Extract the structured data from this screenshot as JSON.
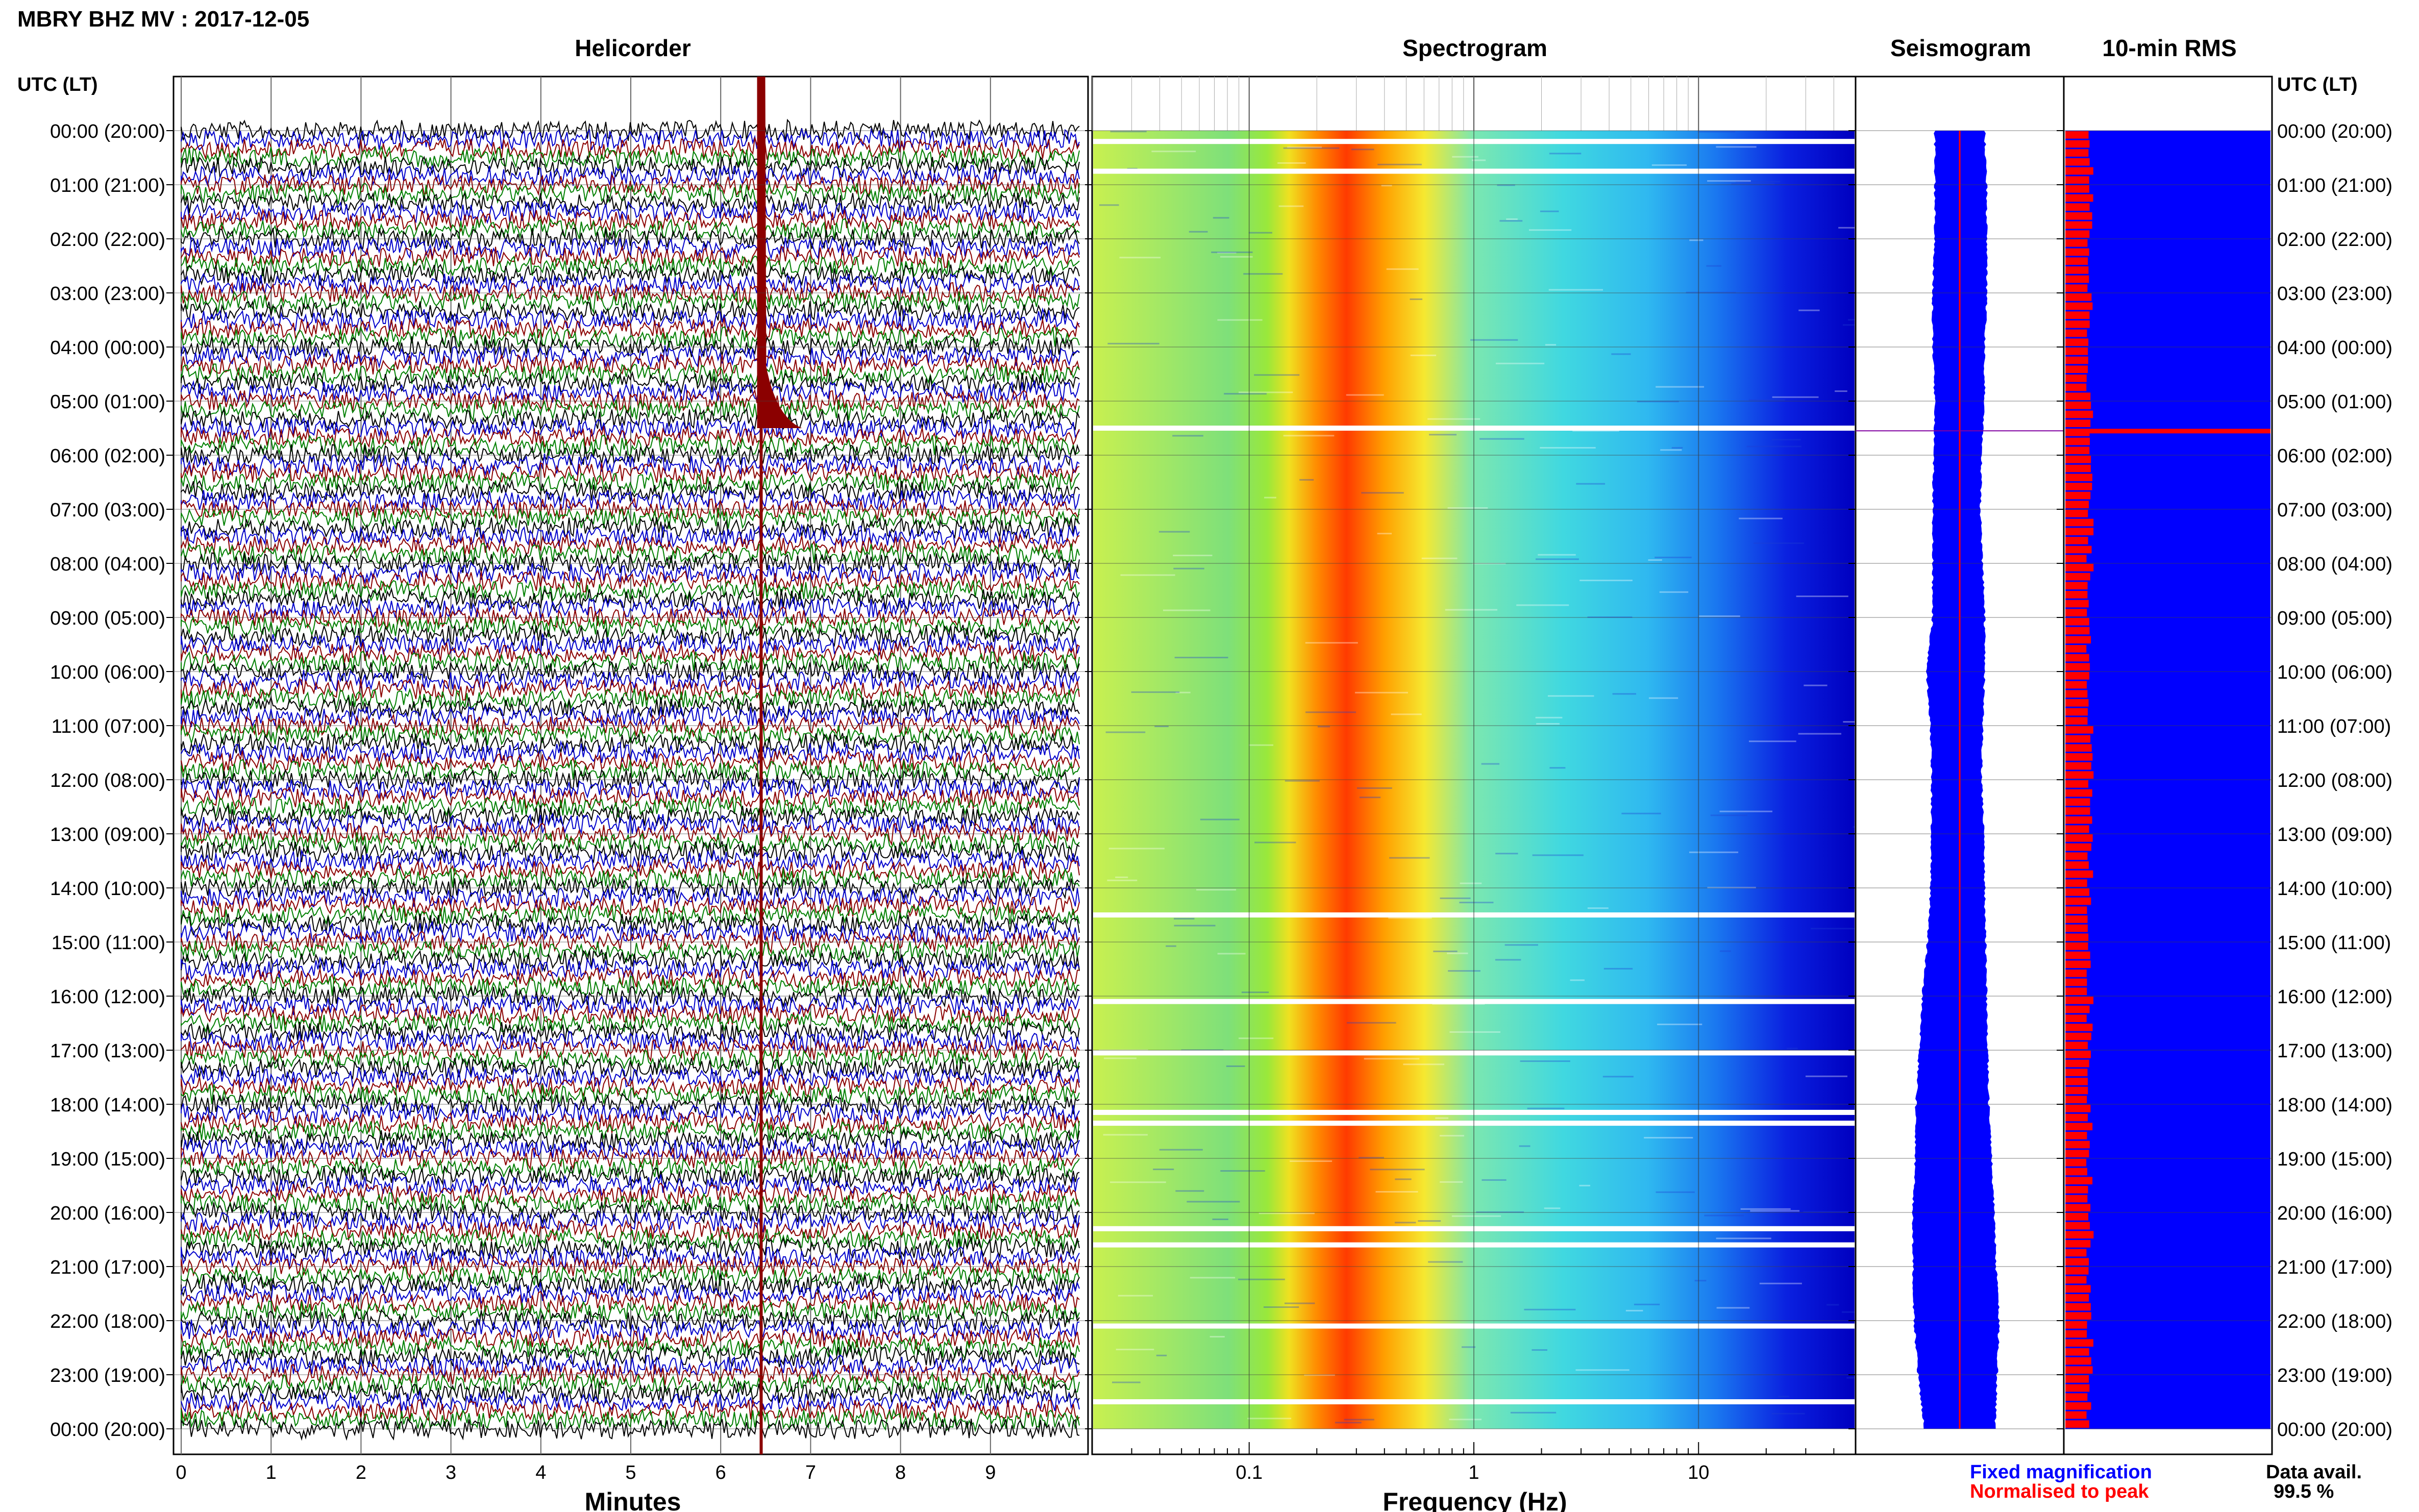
{
  "title": "MBRY BHZ MV : 2017-12-05",
  "panels": {
    "helicorder": "Helicorder",
    "spectrogram": "Spectrogram",
    "seismogram": "Seismogram",
    "rms": "10-min RMS"
  },
  "time_axis": {
    "header": "UTC (LT)",
    "labels": [
      "00:00 (20:00)",
      "01:00 (21:00)",
      "02:00 (22:00)",
      "03:00 (23:00)",
      "04:00 (00:00)",
      "05:00 (01:00)",
      "06:00 (02:00)",
      "07:00 (03:00)",
      "08:00 (04:00)",
      "09:00 (05:00)",
      "10:00 (06:00)",
      "11:00 (07:00)",
      "12:00 (08:00)",
      "13:00 (09:00)",
      "14:00 (10:00)",
      "15:00 (11:00)",
      "16:00 (12:00)",
      "17:00 (13:00)",
      "18:00 (14:00)",
      "19:00 (15:00)",
      "20:00 (16:00)",
      "21:00 (17:00)",
      "22:00 (18:00)",
      "23:00 (19:00)",
      "00:00 (20:00)"
    ]
  },
  "legend": {
    "fixed": "Fixed magnification",
    "normalised": "Normalised to peak",
    "fixed_color": "#0000ff",
    "normalised_color": "#ff0000"
  },
  "data_avail": {
    "label": "Data avail.",
    "value": "99.5 %"
  },
  "chart_data": [
    {
      "type": "line",
      "panel": "helicorder",
      "xlabel": "Minutes",
      "x_ticks": [
        "0",
        "1",
        "2",
        "3",
        "4",
        "5",
        "6",
        "7",
        "8",
        "9"
      ],
      "xlim": [
        0,
        10
      ],
      "trace_colors": [
        "#000000",
        "#0000cc",
        "#8b0000",
        "#008000"
      ],
      "traces_per_hour": 6,
      "event": {
        "minute": 6.45,
        "start_hour": 0.0,
        "end_hour": 24.0,
        "peak_hour": 5.5,
        "color": "#8b0000"
      }
    },
    {
      "type": "heatmap",
      "panel": "spectrogram",
      "xlabel": "Frequency (Hz)",
      "x_scale": "log",
      "xlim": [
        0.02,
        50
      ],
      "x_ticks": [
        "0.1",
        "1",
        "10"
      ],
      "peak_band_hz": [
        0.2,
        0.5
      ],
      "gap_hours": [
        0.2,
        0.75,
        5.5,
        14.5,
        16.1,
        17.05,
        18.15,
        18.35,
        20.3,
        20.6,
        22.1,
        23.5
      ]
    },
    {
      "type": "area",
      "panel": "seismogram",
      "xlim": [
        -1,
        1
      ],
      "hours": [
        0,
        1,
        2,
        3,
        4,
        5,
        6,
        7,
        8,
        9,
        10,
        11,
        12,
        13,
        14,
        15,
        16,
        17,
        18,
        19,
        20,
        21,
        22,
        23,
        24
      ],
      "half_width": [
        0.23,
        0.24,
        0.24,
        0.25,
        0.24,
        0.23,
        0.22,
        0.22,
        0.23,
        0.24,
        0.27,
        0.24,
        0.23,
        0.24,
        0.25,
        0.27,
        0.3,
        0.32,
        0.34,
        0.36,
        0.38,
        0.39,
        0.4,
        0.37,
        0.33
      ],
      "center": [
        0.0,
        0.01,
        0.01,
        0.0,
        -0.01,
        0.0,
        -0.02,
        -0.03,
        -0.02,
        -0.01,
        -0.04,
        -0.03,
        -0.03,
        -0.02,
        -0.02,
        -0.03,
        -0.05,
        -0.06,
        -0.07,
        -0.06,
        -0.06,
        -0.05,
        -0.03,
        -0.02,
        0.0
      ]
    },
    {
      "type": "bar",
      "panel": "rms",
      "orientation": "horizontal",
      "bins_per_hour": 6,
      "fixed_level": 1.0,
      "normalised_level": 0.12,
      "highlight_hour": 5.55
    }
  ]
}
